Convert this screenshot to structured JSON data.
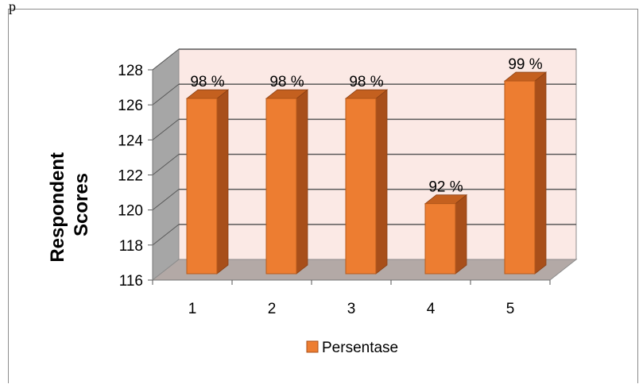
{
  "page_fragment": "p",
  "chart_data": {
    "type": "bar",
    "categories": [
      "1",
      "2",
      "3",
      "4",
      "5"
    ],
    "series": [
      {
        "name": "Persentase",
        "values": [
          126,
          126,
          126,
          120,
          127
        ],
        "labels": [
          "98 %",
          "98 %",
          "98 %",
          "92 %",
          "99 %"
        ]
      }
    ],
    "ylabel_lines": [
      "Respondent",
      "Scores"
    ],
    "ylim": [
      116,
      128
    ],
    "yticks": [
      "116",
      "118",
      "120",
      "122",
      "124",
      "126",
      "128"
    ],
    "grid": true,
    "legend_position": "bottom",
    "colors": {
      "bar_front": "#ed7d31",
      "bar_side": "#a84f1a",
      "bar_top": "#c4601f",
      "back_wall": "#fbe9e5",
      "side_wall": "#a6a6a6",
      "floor": "#b3a9a6",
      "grid": "#595959"
    }
  }
}
